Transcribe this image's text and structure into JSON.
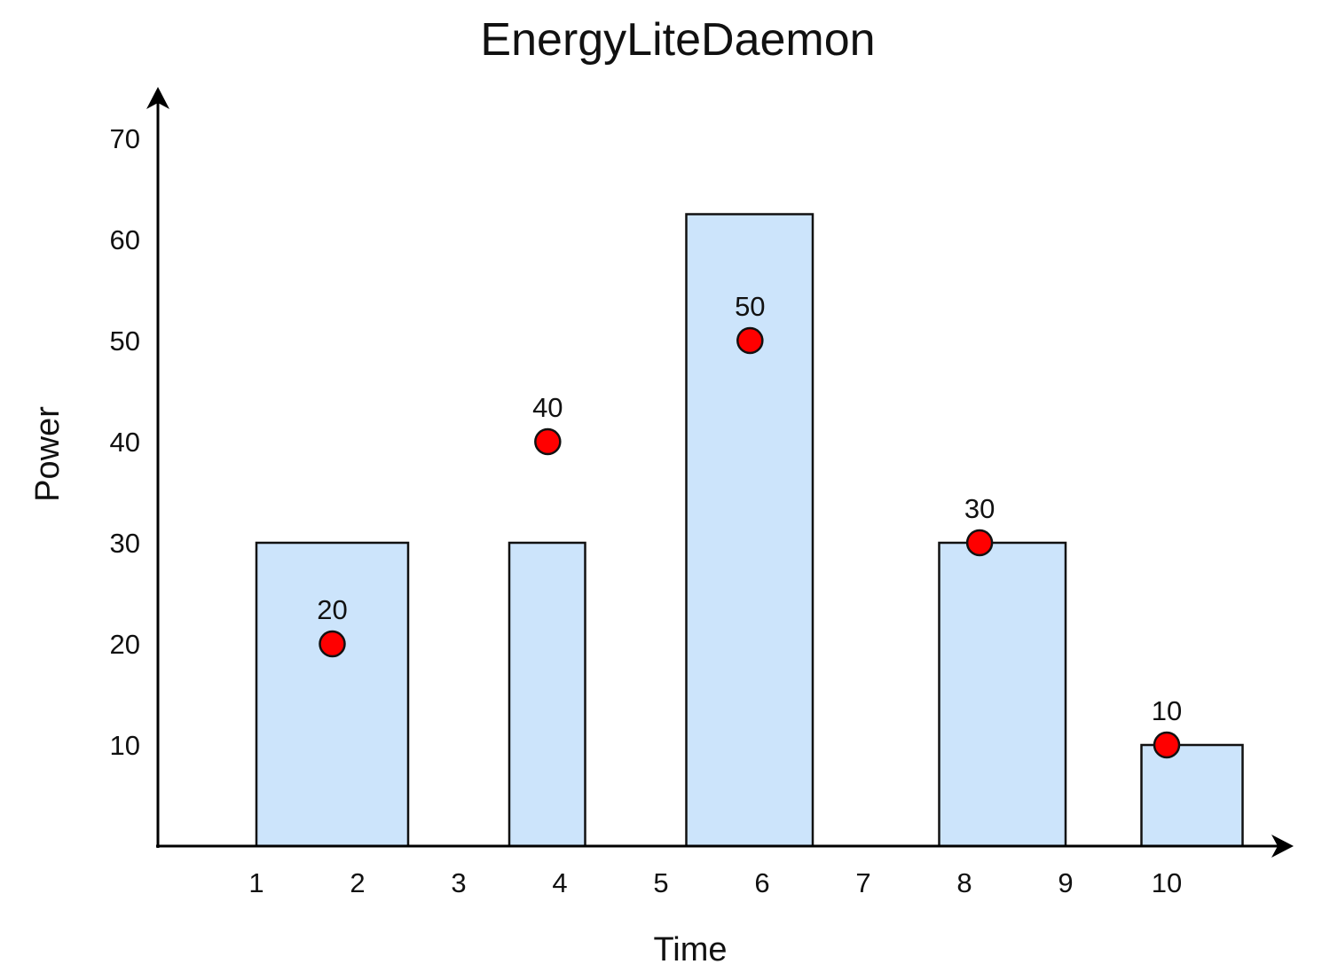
{
  "chart_data": {
    "type": "bar",
    "title": "EnergyLiteDaemon",
    "xlabel": "Time",
    "ylabel": "Power",
    "x_ticks": [
      "1",
      "2",
      "3",
      "4",
      "5",
      "6",
      "7",
      "8",
      "9",
      "10"
    ],
    "y_ticks": [
      "10",
      "20",
      "30",
      "40",
      "50",
      "60",
      "70"
    ],
    "xlim": [
      0,
      11
    ],
    "ylim": [
      0,
      70
    ],
    "grid": false,
    "bars": [
      {
        "x_start": 1.0,
        "x_end": 2.5,
        "value": 30
      },
      {
        "x_start": 3.5,
        "x_end": 4.25,
        "value": 30
      },
      {
        "x_start": 5.25,
        "x_end": 6.5,
        "value": 62.5
      },
      {
        "x_start": 7.75,
        "x_end": 9.0,
        "value": 30
      },
      {
        "x_start": 9.75,
        "x_end": 10.75,
        "value": 10
      }
    ],
    "points": [
      {
        "x": 1.75,
        "y": 20,
        "label": "20"
      },
      {
        "x": 3.88,
        "y": 40,
        "label": "40"
      },
      {
        "x": 5.88,
        "y": 50,
        "label": "50"
      },
      {
        "x": 8.15,
        "y": 30,
        "label": "30"
      },
      {
        "x": 10.0,
        "y": 10,
        "label": "10"
      }
    ],
    "colors": {
      "bar_fill": "#cce4fb",
      "bar_stroke": "#111111",
      "point_fill": "#ff0000",
      "point_stroke": "#111111",
      "axis": "#000000"
    }
  }
}
